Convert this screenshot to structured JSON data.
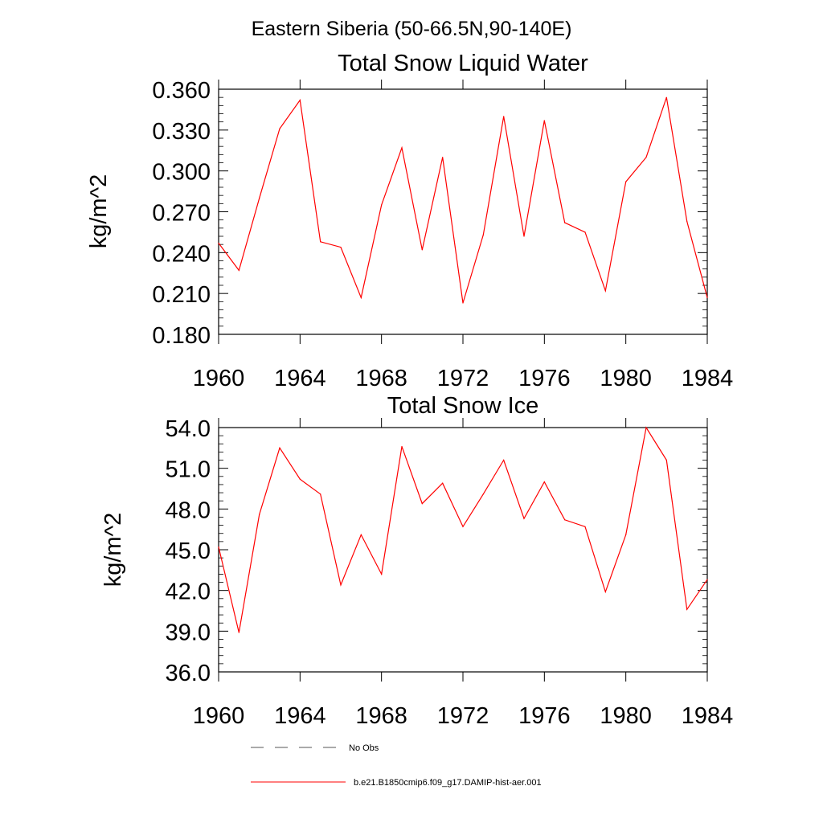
{
  "page_title": "Eastern Siberia (50-66.5N,90-140E)",
  "chart_data": [
    {
      "type": "line",
      "title": "Total Snow Liquid Water",
      "ylabel": "kg/m^2",
      "xlabel": "",
      "xlim": [
        1960,
        1984
      ],
      "ylim": [
        0.18,
        0.36
      ],
      "x_ticks": [
        "1960",
        "1964",
        "1968",
        "1972",
        "1976",
        "1980",
        "1984"
      ],
      "y_ticks": [
        "0.180",
        "0.210",
        "0.240",
        "0.270",
        "0.300",
        "0.330",
        "0.360"
      ],
      "grid": false,
      "series": [
        {
          "name": "b.e21.B1850cmip6.f09_g17.DAMIP-hist-aer.001",
          "color": "#ff0000",
          "x": [
            1960,
            1961,
            1962,
            1963,
            1964,
            1965,
            1966,
            1967,
            1968,
            1969,
            1970,
            1971,
            1972,
            1973,
            1974,
            1975,
            1976,
            1977,
            1978,
            1979,
            1980,
            1981,
            1982,
            1983,
            1984
          ],
          "values": [
            0.247,
            0.227,
            0.28,
            0.331,
            0.352,
            0.248,
            0.244,
            0.207,
            0.275,
            0.317,
            0.242,
            0.31,
            0.203,
            0.253,
            0.34,
            0.252,
            0.337,
            0.262,
            0.255,
            0.212,
            0.292,
            0.31,
            0.354,
            0.263,
            0.207
          ]
        }
      ]
    },
    {
      "type": "line",
      "title": "Total Snow Ice",
      "ylabel": "kg/m^2",
      "xlabel": "",
      "xlim": [
        1960,
        1984
      ],
      "ylim": [
        36.0,
        54.0
      ],
      "x_ticks": [
        "1960",
        "1964",
        "1968",
        "1972",
        "1976",
        "1980",
        "1984"
      ],
      "y_ticks": [
        "36.0",
        "39.0",
        "42.0",
        "45.0",
        "48.0",
        "51.0",
        "54.0"
      ],
      "grid": false,
      "series": [
        {
          "name": "b.e21.B1850cmip6.f09_g17.DAMIP-hist-aer.001",
          "color": "#ff0000",
          "x": [
            1960,
            1961,
            1962,
            1963,
            1964,
            1965,
            1966,
            1967,
            1968,
            1969,
            1970,
            1971,
            1972,
            1973,
            1974,
            1975,
            1976,
            1977,
            1978,
            1979,
            1980,
            1981,
            1982,
            1983,
            1984
          ],
          "values": [
            45.2,
            38.9,
            47.6,
            52.5,
            50.2,
            49.1,
            42.4,
            46.1,
            43.2,
            52.6,
            48.4,
            49.9,
            46.7,
            49.1,
            51.6,
            47.3,
            50.0,
            47.2,
            46.7,
            41.9,
            46.1,
            54.0,
            51.6,
            40.6,
            42.8
          ]
        }
      ]
    }
  ],
  "legend": {
    "placement": "bottom",
    "items": [
      {
        "label": "No Obs",
        "style": "dashed",
        "color": "#555555"
      },
      {
        "label": "b.e21.B1850cmip6.f09_g17.DAMIP-hist-aer.001",
        "style": "solid",
        "color": "#ff0000"
      }
    ]
  }
}
